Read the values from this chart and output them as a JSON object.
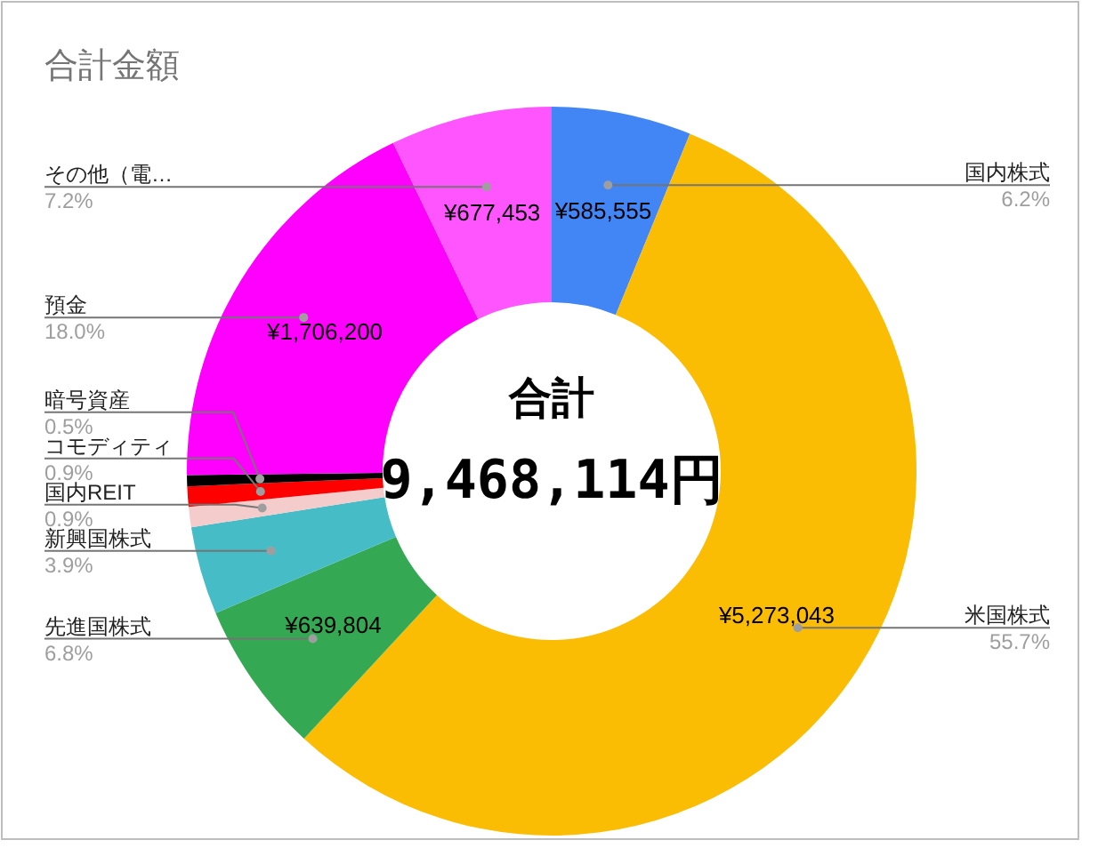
{
  "chart_data": {
    "type": "donut",
    "title": "合計金額",
    "categories": [
      "国内株式",
      "米国株式",
      "先進国株式",
      "新興国株式",
      "国内REIT",
      "コモディティ",
      "暗号資産",
      "預金",
      "その他（電…"
    ],
    "values": [
      585555,
      5273043,
      639804,
      369300,
      85200,
      85200,
      46359,
      1706200,
      677453
    ],
    "value_labels": [
      "¥585,555",
      "¥5,273,043",
      "¥639,804",
      null,
      null,
      null,
      null,
      "¥1,706,200",
      "¥677,453"
    ],
    "colors": [
      "#4285f4",
      "#fbbc04",
      "#34a853",
      "#46bdc6",
      "#f4cccc",
      "#ff0000",
      "#000000",
      "#ff00ff",
      "#ff55ff"
    ],
    "annotations": [
      "合計",
      "9,468,114円",
      {
        "text": "6.2%",
        "x": "国内株式"
      },
      {
        "text": "55.7%",
        "x": "米国株式"
      },
      {
        "text": "6.8%",
        "x": "先進国株式"
      },
      {
        "text": "3.9%",
        "x": "新興国株式"
      },
      {
        "text": "0.9%",
        "x": "国内REIT"
      },
      {
        "text": "0.9%",
        "x": "コモディティ"
      },
      {
        "text": "0.5%",
        "x": "暗号資産"
      },
      {
        "text": "18.0%",
        "x": "預金"
      },
      {
        "text": "7.2%",
        "x": "その他（電…"
      }
    ]
  }
}
